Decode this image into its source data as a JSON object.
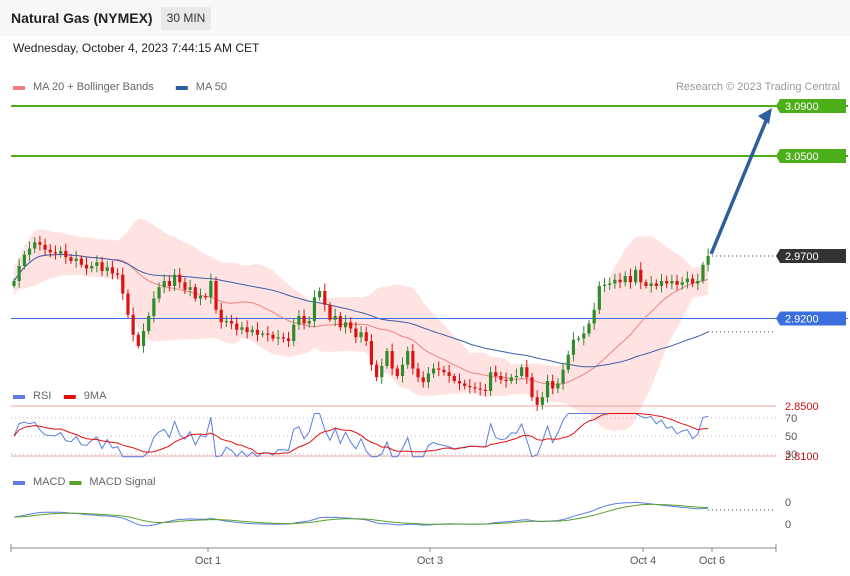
{
  "header": {
    "title": "Natural Gas (NYMEX)",
    "timeframe": "30 MIN"
  },
  "datetime": "Wednesday, October 4, 2023 7:44:15 AM CET",
  "colors": {
    "candle_up": "#2e8b2e",
    "candle_down": "#dd1111",
    "ma20": "#f08080",
    "bollinger_fill": "#ffdede",
    "ma50": "#3a5fa8",
    "target_line": "#4caf1a",
    "pivot_line": "#3b6fe0",
    "support_line": "#f0a0a0",
    "arrow": "#2f5e9e",
    "rsi": "#5b7ee0",
    "rsi_ma": "#e01010",
    "macd": "#5b7ee0",
    "macd_signal": "#5aa02a",
    "last_price_bg": "#333333"
  },
  "legend": {
    "main": [
      {
        "label": "MA 20 + Bollinger Bands",
        "color": "#f08080"
      },
      {
        "label": "MA 50",
        "color": "#2f5e9e"
      }
    ],
    "copyright": "Research © 2023 Trading Central",
    "rsi": [
      {
        "label": "RSI",
        "color": "#5b7ee0"
      },
      {
        "label": "9MA",
        "color": "#e01010"
      }
    ],
    "macd": [
      {
        "label": "MACD",
        "color": "#5b7ee0"
      },
      {
        "label": "MACD Signal",
        "color": "#5aa02a"
      }
    ]
  },
  "chart_data": {
    "type": "candlestick",
    "symbol": "Natural Gas (NYMEX)",
    "interval": "30 MIN",
    "x_ticks": [
      "Oct 1",
      "Oct 3",
      "Oct 4",
      "Oct 6"
    ],
    "ylim": [
      2.78,
      3.1
    ],
    "levels": [
      {
        "label": "3.0900",
        "value": 3.09,
        "kind": "target"
      },
      {
        "label": "3.0500",
        "value": 3.05,
        "kind": "target"
      },
      {
        "label": "2.9700",
        "value": 2.97,
        "kind": "last"
      },
      {
        "label": "2.9200",
        "value": 2.92,
        "kind": "pivot"
      },
      {
        "label": "2.8500",
        "value": 2.85,
        "kind": "support"
      },
      {
        "label": "2.8100",
        "value": 2.81,
        "kind": "support"
      }
    ],
    "close": [
      2.95,
      2.962,
      2.971,
      2.976,
      2.981,
      2.979,
      2.975,
      2.973,
      2.972,
      2.974,
      2.969,
      2.966,
      2.968,
      2.963,
      2.96,
      2.962,
      2.965,
      2.958,
      2.961,
      2.956,
      2.955,
      2.94,
      2.923,
      2.907,
      2.898,
      2.91,
      2.922,
      2.936,
      2.945,
      2.95,
      2.946,
      2.955,
      2.949,
      2.943,
      2.945,
      2.936,
      2.938,
      2.937,
      2.95,
      2.927,
      2.917,
      2.918,
      2.916,
      2.911,
      2.913,
      2.909,
      2.911,
      2.907,
      2.908,
      2.907,
      2.904,
      2.905,
      2.904,
      2.902,
      2.915,
      2.922,
      2.916,
      2.918,
      2.937,
      2.942,
      2.931,
      2.919,
      2.922,
      2.913,
      2.917,
      2.912,
      2.905,
      2.909,
      2.902,
      2.883,
      2.873,
      2.882,
      2.894,
      2.88,
      2.874,
      2.883,
      2.894,
      2.88,
      2.873,
      2.869,
      2.876,
      2.88,
      2.879,
      2.877,
      2.874,
      2.87,
      2.868,
      2.866,
      2.865,
      2.864,
      2.863,
      2.862,
      2.877,
      2.874,
      2.871,
      2.87,
      2.873,
      2.874,
      2.881,
      2.873,
      2.857,
      2.851,
      2.857,
      2.87,
      2.864,
      2.868,
      2.879,
      2.891,
      2.903,
      2.904,
      2.908,
      2.916,
      2.927,
      2.946,
      2.947,
      2.948,
      2.951,
      2.949,
      2.954,
      2.949,
      2.959,
      2.949,
      2.946,
      2.948,
      2.946,
      2.95,
      2.948,
      2.95,
      2.947,
      2.949,
      2.952,
      2.948,
      2.95,
      2.963,
      2.97
    ],
    "rsi_axis": [
      70,
      50,
      30
    ],
    "macd_axis": [
      0,
      0
    ]
  }
}
